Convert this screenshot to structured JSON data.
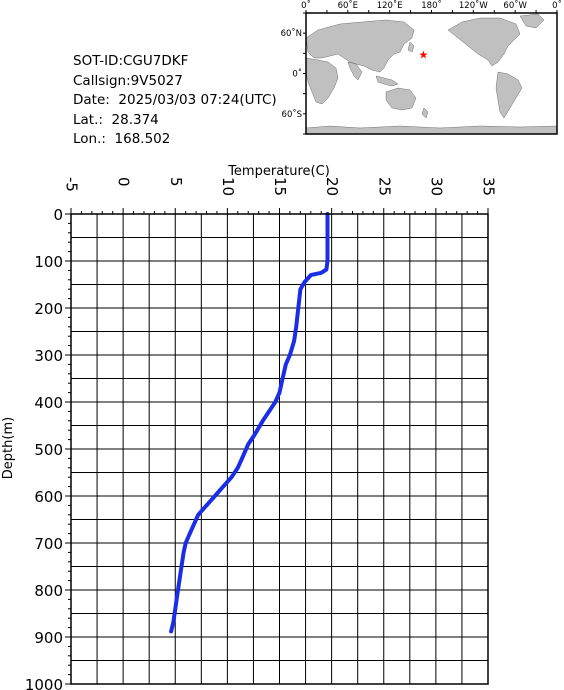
{
  "info": {
    "sot_id": "SOT-ID:CGU7DKF",
    "callsign": "Callsign:9V5027",
    "date": "Date:  2025/03/03 07:24(UTC)",
    "lat": "Lat.:  28.374",
    "lon": "Lon.:  168.502"
  },
  "map": {
    "top_labels": [
      "0˚",
      "60˚E",
      "120˚E",
      "180˚",
      "120˚W",
      "60˚W",
      "0˚"
    ],
    "side_labels": [
      "60˚N",
      "0˚",
      "60˚S"
    ],
    "marker": {
      "lat": 28.374,
      "lon": 168.502,
      "color": "#ff0000"
    },
    "land_color": "#c0c0c0",
    "ocean_color": "#ffffff"
  },
  "chart_data": {
    "type": "line",
    "xlabel": "Temperature(C)",
    "ylabel": "Depth(m)",
    "xlim": [
      -5,
      35
    ],
    "ylim": [
      0,
      1000
    ],
    "y_inverted": true,
    "x_ticks": [
      "-5",
      "0",
      "5",
      "10",
      "15",
      "20",
      "25",
      "30",
      "35"
    ],
    "y_ticks": [
      "0",
      "100",
      "200",
      "300",
      "400",
      "500",
      "600",
      "700",
      "800",
      "900",
      "1000"
    ],
    "grid": true,
    "line_color": "#1a2ee8",
    "series": [
      {
        "x": [
          19.6,
          19.6,
          19.6,
          19.5,
          19.0,
          18.0,
          17.4,
          17.0,
          16.8,
          16.6,
          16.4,
          16.0,
          15.6,
          15.3,
          15.0,
          14.6,
          14.0,
          13.4,
          12.6,
          12.0,
          11.4,
          11.0,
          10.4,
          9.6,
          8.8,
          8.0,
          7.2,
          6.8,
          6.4,
          6.0,
          5.8,
          5.6,
          5.4,
          5.2,
          5.0,
          4.8,
          4.6
        ],
        "y": [
          0,
          50,
          100,
          118,
          125,
          130,
          145,
          160,
          200,
          240,
          270,
          300,
          320,
          350,
          380,
          400,
          420,
          440,
          470,
          490,
          520,
          540,
          560,
          580,
          600,
          620,
          640,
          660,
          680,
          700,
          720,
          750,
          780,
          810,
          840,
          870,
          888
        ]
      }
    ]
  }
}
